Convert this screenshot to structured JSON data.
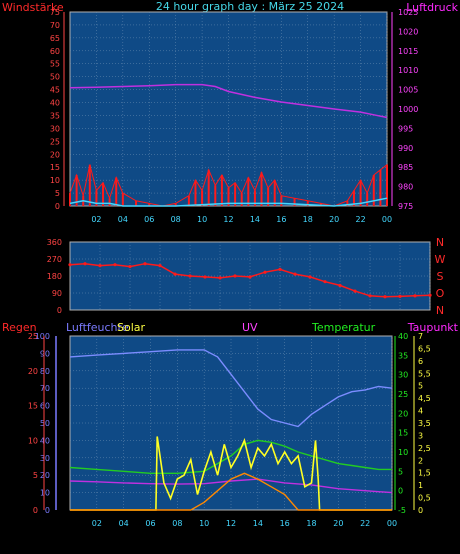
{
  "colors": {
    "background": "#000000",
    "plot_bg": "#0f4a86",
    "grid": "#6a8fb3",
    "frame": "#b0b0b0",
    "wind_label": "#ff2a2a",
    "title": "#46d8e8",
    "pressure_label": "#ff2aff",
    "direction_label": "#ff2a2a",
    "humidity_label": "#7b7bff",
    "solar_label": "#ffff44",
    "uv_label": "#ff44ff",
    "temp_label": "#22ee22",
    "dew_label": "#ff2aff",
    "rain_label": "#ff2a2a",
    "left_axis_1": "#ff4444",
    "right_axis_1": "#ff44ff",
    "left_axis_3a": "#ff4444",
    "left_axis_3b": "#7b7bff",
    "right_axis_3a": "#22ee22",
    "right_axis_3b": "#ffff44",
    "x_axis": "#44d8ff"
  },
  "title": "24 hour graph day : März 25 2024",
  "x_ticks": [
    "02",
    "04",
    "06",
    "08",
    "10",
    "12",
    "14",
    "16",
    "18",
    "20",
    "22",
    "00"
  ],
  "chart_data": [
    {
      "type": "line",
      "xlabel": "",
      "left_label": "Windstärke",
      "right_label": "Luftdruck",
      "left_ticks": [
        "75",
        "70",
        "65",
        "60",
        "55",
        "50",
        "45",
        "40",
        "35",
        "30",
        "25",
        "20",
        "15",
        "10",
        "5",
        "0"
      ],
      "right_ticks": [
        "1025",
        "1020",
        "1015",
        "1010",
        "1005",
        "1000",
        "995",
        "990",
        "985",
        "980",
        "975"
      ],
      "ylim_left": [
        0,
        75
      ],
      "ylim_right": [
        975,
        1025
      ],
      "x_range": [
        0,
        24
      ],
      "series": [
        {
          "axis": "right",
          "color": "#c030e0",
          "x": [
            0,
            2,
            4,
            6,
            8,
            10,
            11,
            12,
            14,
            16,
            18,
            20,
            22,
            23,
            24
          ],
          "values": [
            1005.5,
            1005.6,
            1005.8,
            1006.0,
            1006.3,
            1006.3,
            1005.8,
            1004.5,
            1003.0,
            1001.8,
            1000.9,
            1000.0,
            999.2,
            998.5,
            997.8
          ]
        },
        {
          "axis": "left",
          "color": "#ff1a1a",
          "x": [
            0,
            0.5,
            1,
            1.5,
            2,
            2.5,
            3,
            3.5,
            4,
            5,
            6,
            7,
            8,
            9,
            9.5,
            10,
            10.5,
            11,
            11.5,
            12,
            12.5,
            13,
            13.5,
            14,
            14.5,
            15,
            15.5,
            16,
            17,
            18,
            19,
            20,
            21,
            21.5,
            22,
            22.5,
            23,
            23.5,
            24
          ],
          "values": [
            5,
            12,
            4,
            16,
            6,
            9,
            3,
            11,
            5,
            2,
            1,
            0,
            1,
            4,
            10,
            6,
            14,
            8,
            12,
            7,
            9,
            5,
            11,
            6,
            13,
            7,
            10,
            4,
            3,
            2,
            1,
            0,
            2,
            6,
            10,
            5,
            12,
            14,
            16
          ]
        },
        {
          "axis": "left",
          "color": "#44d8ff",
          "x": [
            0,
            1,
            2,
            3,
            4,
            8,
            12,
            16,
            20,
            22,
            23,
            24
          ],
          "values": [
            1,
            2,
            1,
            1,
            0,
            0,
            1,
            1,
            0,
            1,
            2,
            3
          ]
        }
      ]
    },
    {
      "type": "scatter",
      "xlabel": "",
      "left_ticks": [
        "360",
        "270",
        "180",
        "90",
        "0"
      ],
      "right_labels": [
        "N",
        "W",
        "S",
        "O",
        "N"
      ],
      "ylim": [
        0,
        360
      ],
      "x_range": [
        0,
        24
      ],
      "series": [
        {
          "color": "#ff1a1a",
          "x": [
            0,
            1,
            2,
            3,
            4,
            5,
            6,
            7,
            8,
            9,
            10,
            11,
            12,
            13,
            14,
            15,
            16,
            17,
            18,
            19,
            20,
            21,
            22,
            23,
            24
          ],
          "values": [
            240,
            245,
            235,
            240,
            230,
            245,
            235,
            190,
            180,
            175,
            170,
            180,
            175,
            200,
            215,
            190,
            175,
            150,
            130,
            100,
            75,
            70,
            72,
            75,
            78
          ]
        }
      ]
    },
    {
      "type": "line",
      "xlabel": "",
      "labels": {
        "rain": "Regen",
        "humidity": "Luftfeuchte",
        "solar": "Solar",
        "uv": "UV",
        "temperature": "Temperatur",
        "dewpoint": "Taupunkt"
      },
      "left_ticks_a": [
        "25",
        "20",
        "15",
        "10",
        "5",
        "0"
      ],
      "left_ticks_b": [
        "100",
        "90",
        "80",
        "70",
        "60",
        "50",
        "40",
        "30",
        "20",
        "10",
        "0"
      ],
      "right_ticks_a": [
        "40",
        "35",
        "30",
        "25",
        "20",
        "15",
        "10",
        "5",
        "0",
        "-5"
      ],
      "right_ticks_b": [
        "7",
        "6,5",
        "6",
        "5,5",
        "5",
        "4,5",
        "4",
        "3,5",
        "3",
        "2,5",
        "2",
        "1,5",
        "1",
        "0,5",
        "0"
      ],
      "ylim_humidity": [
        0,
        100
      ],
      "ylim_temperature": [
        -5,
        40
      ],
      "x_range": [
        0,
        24
      ],
      "series": [
        {
          "name": "Luftfeuchte",
          "axis": "humidity",
          "color": "#7b8cff",
          "x": [
            0,
            2,
            4,
            6,
            8,
            10,
            11,
            12,
            13,
            14,
            15,
            16,
            17,
            18,
            19,
            20,
            21,
            22,
            23,
            24
          ],
          "values": [
            88,
            89,
            90,
            91,
            92,
            92,
            88,
            78,
            68,
            58,
            52,
            50,
            48,
            55,
            60,
            65,
            68,
            69,
            71,
            70
          ]
        },
        {
          "name": "Temperatur",
          "axis": "temperature",
          "color": "#22cc22",
          "x": [
            0,
            2,
            4,
            6,
            8,
            10,
            11,
            12,
            13,
            14,
            15,
            16,
            17,
            18,
            19,
            20,
            21,
            22,
            23,
            24
          ],
          "values": [
            6,
            5.5,
            5,
            4.5,
            4.5,
            5,
            7,
            9,
            12,
            13,
            12.5,
            11.5,
            10,
            9,
            8,
            7,
            6.5,
            6,
            5.5,
            5.5
          ]
        },
        {
          "name": "Taupunkt",
          "axis": "temperature",
          "color": "#c030e0",
          "x": [
            0,
            2,
            4,
            6,
            8,
            10,
            12,
            14,
            16,
            18,
            20,
            22,
            24
          ],
          "values": [
            2.5,
            2.3,
            2,
            1.8,
            1.7,
            1.8,
            2.5,
            3,
            2,
            1.5,
            0.5,
            0,
            -0.5
          ]
        },
        {
          "name": "Solar",
          "axis": "temperature",
          "color": "#ffff22",
          "x": [
            0,
            6.4,
            6.5,
            7,
            7.5,
            8,
            8.5,
            9,
            9.5,
            10,
            10.5,
            11,
            11.5,
            12,
            12.5,
            13,
            13.5,
            14,
            14.5,
            15,
            15.5,
            16,
            16.5,
            17,
            17.5,
            18,
            18.3,
            18.5,
            18.6,
            19,
            24
          ],
          "values": [
            -5,
            -5,
            14,
            2,
            -2,
            3,
            4,
            8,
            -1,
            5,
            10,
            4,
            12,
            6,
            9,
            13,
            6,
            11,
            9,
            12,
            7,
            10,
            7,
            9,
            1,
            2,
            13,
            3,
            -5,
            -5,
            -5
          ]
        },
        {
          "name": "UV",
          "axis": "temperature",
          "color": "#ff8800",
          "x": [
            0,
            9,
            10,
            11,
            12,
            13,
            14,
            15,
            16,
            17,
            24
          ],
          "values": [
            -5,
            -5,
            -3,
            0,
            3,
            4.5,
            3,
            1,
            -1,
            -5,
            -5
          ]
        }
      ]
    }
  ]
}
